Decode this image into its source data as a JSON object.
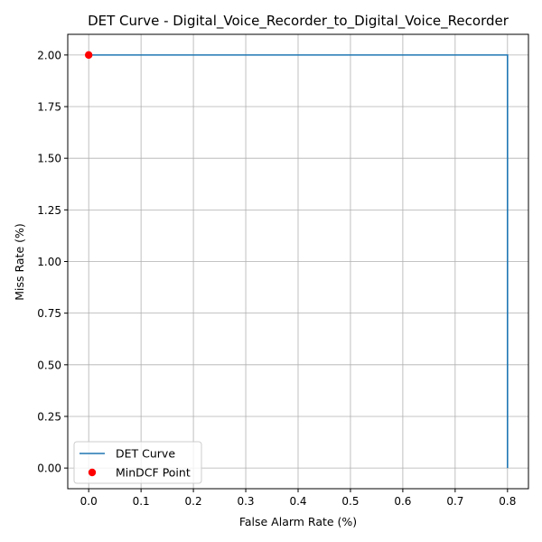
{
  "chart_data": {
    "type": "line",
    "title": "DET Curve - Digital_Voice_Recorder_to_Digital_Voice_Recorder",
    "xlabel": "False Alarm Rate (%)",
    "ylabel": "Miss Rate (%)",
    "xlim": [
      -0.04,
      0.84
    ],
    "ylim": [
      -0.1,
      2.1
    ],
    "xticks": [
      0.0,
      0.1,
      0.2,
      0.3,
      0.4,
      0.5,
      0.6,
      0.7,
      0.8
    ],
    "xtick_labels": [
      "0.0",
      "0.1",
      "0.2",
      "0.3",
      "0.4",
      "0.5",
      "0.6",
      "0.7",
      "0.8"
    ],
    "yticks": [
      0.0,
      0.25,
      0.5,
      0.75,
      1.0,
      1.25,
      1.5,
      1.75,
      2.0
    ],
    "ytick_labels": [
      "0.00",
      "0.25",
      "0.50",
      "0.75",
      "1.00",
      "1.25",
      "1.50",
      "1.75",
      "2.00"
    ],
    "grid": true,
    "legend_position": "lower-left",
    "series": [
      {
        "name": "DET Curve",
        "kind": "line",
        "color": "#1f77b4",
        "x": [
          0.0,
          0.8,
          0.8
        ],
        "y": [
          2.0,
          2.0,
          0.0
        ]
      },
      {
        "name": "MinDCF Point",
        "kind": "scatter",
        "color": "#ff0000",
        "x": [
          0.0
        ],
        "y": [
          2.0
        ]
      }
    ]
  }
}
